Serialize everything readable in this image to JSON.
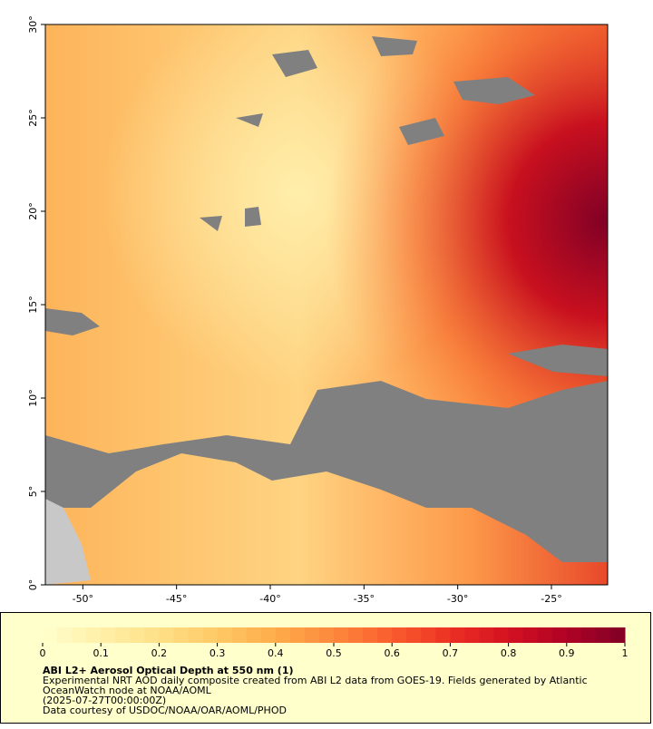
{
  "map": {
    "xlim": [
      -52,
      -22
    ],
    "ylim": [
      0,
      30
    ],
    "xticks": [
      {
        "value": -50,
        "label": "-50°"
      },
      {
        "value": -45,
        "label": "-45°"
      },
      {
        "value": -40,
        "label": "-40°"
      },
      {
        "value": -35,
        "label": "-35°"
      },
      {
        "value": -30,
        "label": "-30°"
      },
      {
        "value": -25,
        "label": "-25°"
      }
    ],
    "yticks": [
      {
        "value": 0,
        "label": "0°"
      },
      {
        "value": 5,
        "label": "5°"
      },
      {
        "value": 10,
        "label": "10°"
      },
      {
        "value": 15,
        "label": "15°"
      },
      {
        "value": 20,
        "label": "20°"
      },
      {
        "value": 25,
        "label": "25°"
      },
      {
        "value": 30,
        "label": "30°"
      }
    ]
  },
  "colorbar": {
    "range": [
      0,
      1
    ],
    "ticks": [
      0,
      0.1,
      0.2,
      0.3,
      0.4,
      0.5,
      0.6,
      0.7,
      0.8,
      0.9,
      1
    ],
    "colors": [
      "#ffffcc",
      "#fff0a8",
      "#fee087",
      "#fec965",
      "#feab4b",
      "#fd893c",
      "#fa5c2e",
      "#ec3023",
      "#d31121",
      "#af0225",
      "#800026"
    ]
  },
  "legend": {
    "title": "ABI L2+ Aerosol Optical Depth at 550 nm (1)",
    "lines": [
      "Experimental NRT AOD daily composite created from ABI L2 data from GOES-19. Fields generated by Atlantic",
      "OceanWatch node at NOAA/AOML",
      "(2025-07-27T00:00:00Z)",
      "Data courtesy of USDOC/NOAA/OAR/AOML/PHOD"
    ]
  }
}
